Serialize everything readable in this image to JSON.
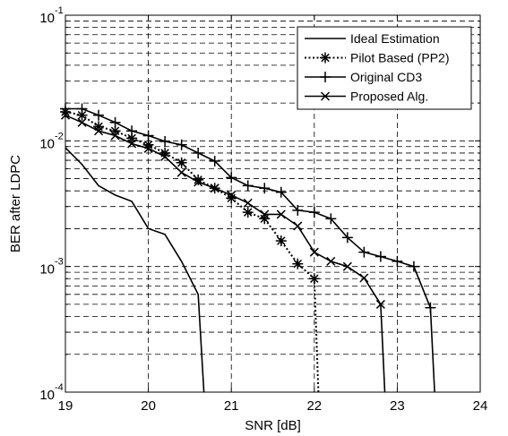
{
  "chart_data": {
    "type": "line",
    "xlabel": "SNR [dB]",
    "ylabel": "BER after LDPC",
    "x_scale": "linear",
    "y_scale": "log",
    "xlim": [
      19,
      24
    ],
    "ylim": [
      0.0001,
      0.1
    ],
    "x_ticks": [
      19,
      20,
      21,
      22,
      23,
      24
    ],
    "x_tick_labels": [
      "19",
      "20",
      "21",
      "22",
      "23",
      "24"
    ],
    "y_ticks": [
      0.0001,
      0.001,
      0.01,
      0.1
    ],
    "y_tick_labels": [
      {
        "base": "10",
        "exp": "-4"
      },
      {
        "base": "10",
        "exp": "-3"
      },
      {
        "base": "10",
        "exp": "-2"
      },
      {
        "base": "10",
        "exp": "-1"
      }
    ],
    "grid": true,
    "legend_position": "top-right",
    "series": [
      {
        "name": "Ideal Estimation",
        "line": "solid",
        "marker": "none",
        "x": [
          19.0,
          19.2,
          19.4,
          19.6,
          19.8,
          20.0,
          20.2,
          20.4,
          20.6,
          20.67
        ],
        "y": [
          0.0088,
          0.0065,
          0.0044,
          0.0037,
          0.0033,
          0.002,
          0.0018,
          0.0011,
          0.0006,
          0.0001
        ]
      },
      {
        "name": "Pilot Based (PP2)",
        "line": "dotted",
        "marker": "asterisk",
        "x": [
          19.0,
          19.2,
          19.4,
          19.6,
          19.8,
          20.0,
          20.2,
          20.4,
          20.6,
          20.8,
          21.0,
          21.2,
          21.4,
          21.6,
          21.8,
          22.0,
          22.05
        ],
        "y": [
          0.017,
          0.016,
          0.013,
          0.012,
          0.0105,
          0.0093,
          0.008,
          0.0067,
          0.0049,
          0.0042,
          0.0035,
          0.0027,
          0.0024,
          0.0016,
          0.00105,
          0.0008,
          0.0001
        ],
        "marked_points": [
          0,
          1,
          2,
          3,
          4,
          5,
          6,
          7,
          8,
          9,
          10,
          11,
          12,
          13,
          14,
          15
        ]
      },
      {
        "name": "Original CD3",
        "line": "solid",
        "marker": "plus",
        "x": [
          19.0,
          19.2,
          19.4,
          19.6,
          19.8,
          20.0,
          20.2,
          20.4,
          20.6,
          20.8,
          21.0,
          21.2,
          21.4,
          21.6,
          21.8,
          22.0,
          22.2,
          22.4,
          22.6,
          22.8,
          23.0,
          23.2,
          23.4,
          23.45
        ],
        "y": [
          0.018,
          0.018,
          0.016,
          0.014,
          0.012,
          0.011,
          0.0099,
          0.0093,
          0.008,
          0.0069,
          0.0051,
          0.0044,
          0.0042,
          0.0039,
          0.0028,
          0.0027,
          0.0024,
          0.0017,
          0.0013,
          0.0012,
          0.0011,
          0.001,
          0.00047,
          0.0001
        ],
        "marked_points": [
          0,
          1,
          2,
          3,
          4,
          5,
          6,
          7,
          8,
          9,
          10,
          11,
          12,
          13,
          14,
          15,
          16,
          17,
          18,
          19,
          20,
          21,
          22
        ]
      },
      {
        "name": "Proposed Alg.",
        "line": "solid",
        "marker": "x",
        "x": [
          19.0,
          19.2,
          19.4,
          19.6,
          19.8,
          20.0,
          20.2,
          20.4,
          20.6,
          20.8,
          21.0,
          21.2,
          21.4,
          21.6,
          21.8,
          22.0,
          22.2,
          22.4,
          22.6,
          22.8,
          22.85
        ],
        "y": [
          0.016,
          0.014,
          0.012,
          0.011,
          0.0095,
          0.0087,
          0.0075,
          0.0056,
          0.0047,
          0.0042,
          0.0037,
          0.0032,
          0.0026,
          0.0026,
          0.0021,
          0.0013,
          0.0011,
          0.001,
          0.00081,
          0.0005,
          0.0001
        ],
        "marked_points": [
          0,
          1,
          2,
          3,
          4,
          5,
          6,
          7,
          8,
          9,
          10,
          11,
          12,
          13,
          14,
          15,
          16,
          17,
          18,
          19
        ]
      }
    ]
  }
}
